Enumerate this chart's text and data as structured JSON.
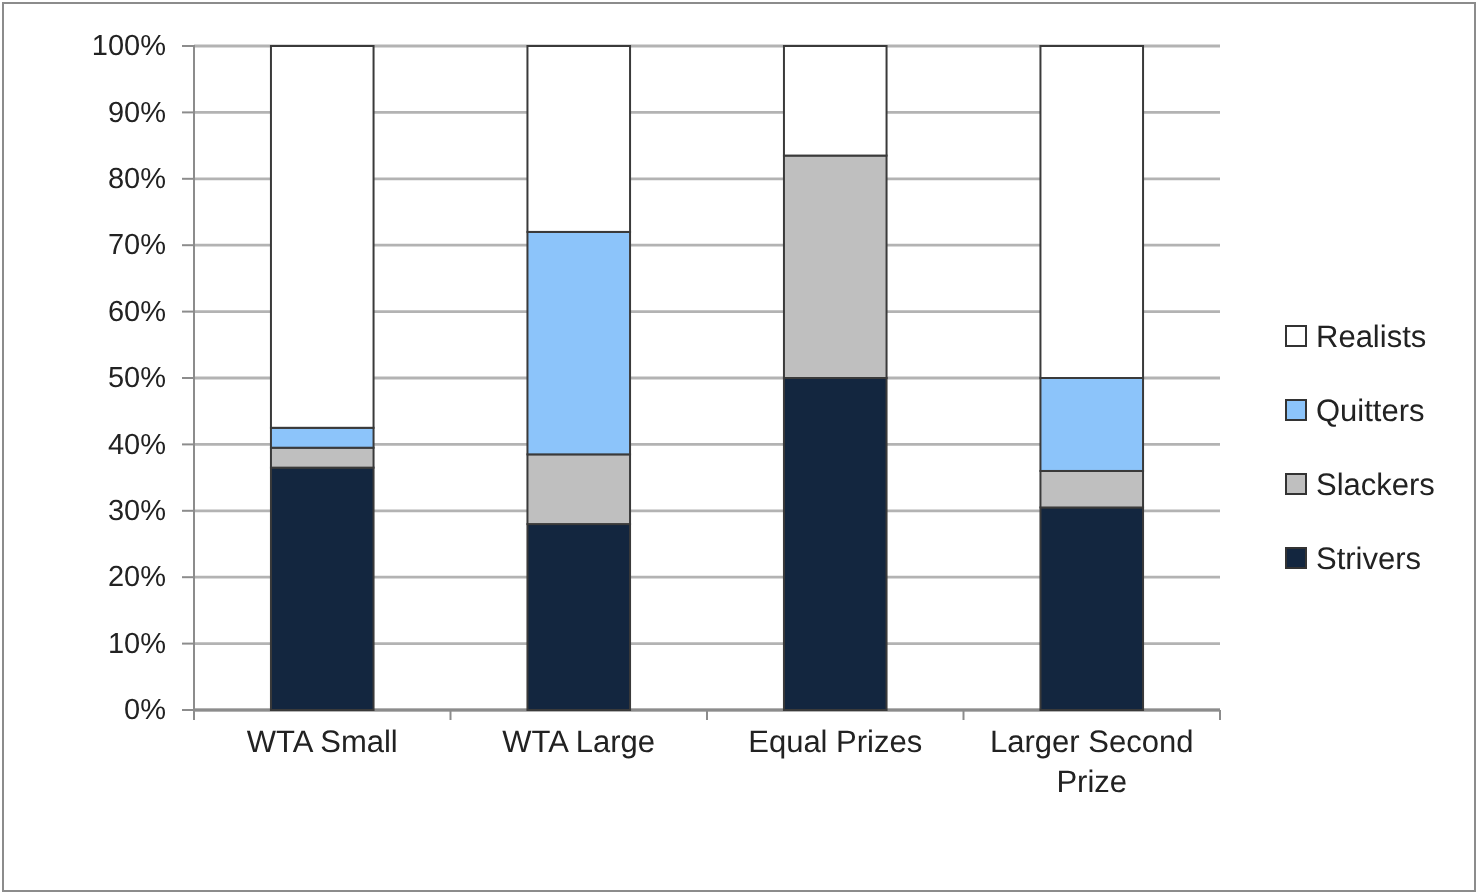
{
  "chart_data": {
    "type": "bar",
    "stacked": true,
    "categories": [
      "WTA Small",
      "WTA Large",
      "Equal Prizes",
      "Larger Second Prize"
    ],
    "series": [
      {
        "name": "Strivers",
        "color": "#13263f",
        "values": [
          36.5,
          28,
          50,
          30.5
        ]
      },
      {
        "name": "Slackers",
        "color": "#bfbfbf",
        "values": [
          3,
          10.5,
          33.5,
          5.5
        ]
      },
      {
        "name": "Quitters",
        "color": "#8cc4fa",
        "values": [
          3,
          33.5,
          0,
          14
        ]
      },
      {
        "name": "Realists",
        "color": "#ffffff",
        "values": [
          57.5,
          28,
          16.5,
          50
        ]
      }
    ],
    "ylim": [
      0,
      100
    ],
    "yticks": [
      {
        "value": 0,
        "label": "0%"
      },
      {
        "value": 10,
        "label": "10%"
      },
      {
        "value": 20,
        "label": "20%"
      },
      {
        "value": 30,
        "label": "30%"
      },
      {
        "value": 40,
        "label": "40%"
      },
      {
        "value": 50,
        "label": "50%"
      },
      {
        "value": 60,
        "label": "60%"
      },
      {
        "value": 70,
        "label": "70%"
      },
      {
        "value": 80,
        "label": "80%"
      },
      {
        "value": 90,
        "label": "90%"
      },
      {
        "value": 100,
        "label": "100%"
      }
    ],
    "grid": "y",
    "legend": "right"
  }
}
